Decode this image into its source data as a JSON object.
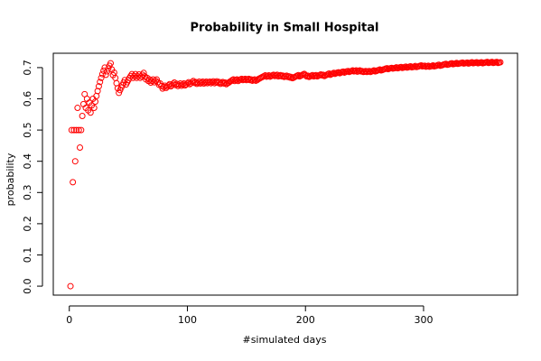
{
  "chart_data": {
    "type": "scatter",
    "title": "Probability in Small Hospital",
    "x_label": "#simulated days",
    "y_label": "probability",
    "xlim": [
      -13.56,
      379.56
    ],
    "ylim": [
      -0.0287,
      0.746
    ],
    "xticks": [
      0,
      100,
      200,
      300
    ],
    "yticks": [
      {
        "value": 0,
        "label": "0.0"
      },
      0.1,
      0.2,
      0.3,
      0.4,
      0.5,
      0.6,
      0.7
    ],
    "series": [
      {
        "color": "#ff0000",
        "x": [
          1,
          2,
          3,
          4,
          5,
          6,
          7,
          8,
          9,
          10,
          11,
          12,
          13,
          14,
          15,
          16,
          17,
          18,
          19,
          20,
          21,
          22,
          23,
          24,
          25,
          26,
          27,
          28,
          29,
          30,
          31,
          32,
          33,
          34,
          35,
          36,
          37,
          38,
          39,
          40,
          41,
          42,
          43,
          44,
          45,
          46,
          47,
          48,
          49,
          50,
          51,
          52,
          53,
          54,
          55,
          56,
          57,
          58,
          59,
          60,
          61,
          62,
          63,
          64,
          65,
          66,
          67,
          68,
          69,
          70,
          71,
          72,
          73,
          74,
          75,
          76,
          77,
          78,
          79,
          80,
          81,
          82,
          83,
          84,
          85,
          86,
          87,
          88,
          89,
          90,
          91,
          92,
          93,
          94,
          95,
          96,
          97,
          98,
          99,
          100,
          101,
          102,
          103,
          104,
          105,
          106,
          107,
          108,
          109,
          110,
          111,
          112,
          113,
          114,
          115,
          116,
          117,
          118,
          119,
          120,
          121,
          122,
          123,
          124,
          125,
          126,
          127,
          128,
          129,
          130,
          131,
          132,
          133,
          134,
          135,
          136,
          137,
          138,
          139,
          140,
          141,
          142,
          143,
          144,
          145,
          146,
          147,
          148,
          149,
          150,
          151,
          152,
          153,
          154,
          155,
          156,
          157,
          158,
          159,
          160,
          161,
          162,
          163,
          164,
          165,
          166,
          167,
          168,
          169,
          170,
          171,
          172,
          173,
          174,
          175,
          176,
          177,
          178,
          179,
          180,
          181,
          182,
          183,
          184,
          185,
          186,
          187,
          188,
          189,
          190,
          191,
          192,
          193,
          194,
          195,
          196,
          197,
          198,
          199,
          200,
          201,
          202,
          203,
          204,
          205,
          206,
          207,
          208,
          209,
          210,
          211,
          212,
          213,
          214,
          215,
          216,
          217,
          218,
          219,
          220,
          221,
          222,
          223,
          224,
          225,
          226,
          227,
          228,
          229,
          230,
          231,
          232,
          233,
          234,
          235,
          236,
          237,
          238,
          239,
          240,
          241,
          242,
          243,
          244,
          245,
          246,
          247,
          248,
          249,
          250,
          251,
          252,
          253,
          254,
          255,
          256,
          257,
          258,
          259,
          260,
          261,
          262,
          263,
          264,
          265,
          266,
          267,
          268,
          269,
          270,
          271,
          272,
          273,
          274,
          275,
          276,
          277,
          278,
          279,
          280,
          281,
          282,
          283,
          284,
          285,
          286,
          287,
          288,
          289,
          290,
          291,
          292,
          293,
          294,
          295,
          296,
          297,
          298,
          299,
          300,
          301,
          302,
          303,
          304,
          305,
          306,
          307,
          308,
          309,
          310,
          311,
          312,
          313,
          314,
          315,
          316,
          317,
          318,
          319,
          320,
          321,
          322,
          323,
          324,
          325,
          326,
          327,
          328,
          329,
          330,
          331,
          332,
          333,
          334,
          335,
          336,
          337,
          338,
          339,
          340,
          341,
          342,
          343,
          344,
          345,
          346,
          347,
          348,
          349,
          350,
          351,
          352,
          353,
          354,
          355,
          356,
          357,
          358,
          359,
          360,
          361,
          362,
          363,
          364,
          365
        ],
        "values": [
          0,
          0.5,
          0.333,
          0.5,
          0.4,
          0.5,
          0.571,
          0.5,
          0.444,
          0.5,
          0.545,
          0.583,
          0.615,
          0.571,
          0.6,
          0.563,
          0.588,
          0.556,
          0.579,
          0.6,
          0.571,
          0.591,
          0.609,
          0.625,
          0.64,
          0.654,
          0.667,
          0.679,
          0.69,
          0.7,
          0.677,
          0.688,
          0.697,
          0.706,
          0.714,
          0.694,
          0.676,
          0.684,
          0.667,
          0.65,
          0.634,
          0.619,
          0.628,
          0.636,
          0.644,
          0.652,
          0.66,
          0.646,
          0.653,
          0.66,
          0.667,
          0.673,
          0.679,
          0.667,
          0.673,
          0.679,
          0.667,
          0.672,
          0.678,
          0.667,
          0.672,
          0.677,
          0.683,
          0.672,
          0.662,
          0.667,
          0.657,
          0.662,
          0.652,
          0.657,
          0.662,
          0.653,
          0.658,
          0.662,
          0.653,
          0.645,
          0.649,
          0.641,
          0.633,
          0.638,
          0.642,
          0.635,
          0.639,
          0.643,
          0.647,
          0.64,
          0.644,
          0.648,
          0.652,
          0.644,
          0.648,
          0.641,
          0.645,
          0.649,
          0.642,
          0.646,
          0.649,
          0.643,
          0.646,
          0.65,
          0.653,
          0.647,
          0.65,
          0.654,
          0.657,
          0.651,
          0.654,
          0.648,
          0.651,
          0.655,
          0.649,
          0.652,
          0.655,
          0.649,
          0.652,
          0.655,
          0.65,
          0.653,
          0.655,
          0.65,
          0.653,
          0.656,
          0.65,
          0.653,
          0.656,
          0.651,
          0.654,
          0.648,
          0.651,
          0.654,
          0.649,
          0.652,
          0.647,
          0.65,
          0.652,
          0.655,
          0.657,
          0.66,
          0.662,
          0.657,
          0.66,
          0.662,
          0.657,
          0.66,
          0.662,
          0.664,
          0.66,
          0.662,
          0.664,
          0.66,
          0.662,
          0.664,
          0.66,
          0.662,
          0.658,
          0.66,
          0.662,
          0.658,
          0.66,
          0.663,
          0.665,
          0.667,
          0.669,
          0.671,
          0.673,
          0.675,
          0.671,
          0.673,
          0.675,
          0.671,
          0.673,
          0.675,
          0.677,
          0.673,
          0.675,
          0.677,
          0.672,
          0.674,
          0.676,
          0.672,
          0.674,
          0.67,
          0.672,
          0.674,
          0.67,
          0.672,
          0.668,
          0.67,
          0.666,
          0.668,
          0.67,
          0.672,
          0.674,
          0.676,
          0.672,
          0.674,
          0.676,
          0.678,
          0.68,
          0.676,
          0.672,
          0.674,
          0.67,
          0.672,
          0.674,
          0.676,
          0.672,
          0.674,
          0.676,
          0.672,
          0.674,
          0.676,
          0.678,
          0.675,
          0.677,
          0.673,
          0.675,
          0.677,
          0.679,
          0.681,
          0.677,
          0.679,
          0.681,
          0.683,
          0.68,
          0.682,
          0.684,
          0.685,
          0.682,
          0.684,
          0.686,
          0.687,
          0.684,
          0.686,
          0.688,
          0.689,
          0.686,
          0.688,
          0.689,
          0.691,
          0.688,
          0.689,
          0.691,
          0.687,
          0.689,
          0.691,
          0.688,
          0.689,
          0.686,
          0.687,
          0.689,
          0.686,
          0.688,
          0.689,
          0.686,
          0.688,
          0.689,
          0.691,
          0.688,
          0.689,
          0.691,
          0.692,
          0.694,
          0.691,
          0.692,
          0.694,
          0.695,
          0.697,
          0.698,
          0.695,
          0.697,
          0.698,
          0.699,
          0.697,
          0.698,
          0.699,
          0.701,
          0.698,
          0.699,
          0.701,
          0.702,
          0.699,
          0.7,
          0.702,
          0.703,
          0.7,
          0.701,
          0.703,
          0.704,
          0.701,
          0.702,
          0.703,
          0.705,
          0.702,
          0.703,
          0.704,
          0.706,
          0.707,
          0.704,
          0.705,
          0.706,
          0.703,
          0.704,
          0.706,
          0.703,
          0.704,
          0.705,
          0.707,
          0.704,
          0.705,
          0.706,
          0.708,
          0.709,
          0.706,
          0.707,
          0.708,
          0.71,
          0.711,
          0.712,
          0.709,
          0.71,
          0.711,
          0.713,
          0.714,
          0.711,
          0.712,
          0.713,
          0.715,
          0.712,
          0.713,
          0.714,
          0.715,
          0.716,
          0.713,
          0.714,
          0.715,
          0.716,
          0.713,
          0.714,
          0.716,
          0.717,
          0.714,
          0.715,
          0.716,
          0.717,
          0.714,
          0.715,
          0.716,
          0.717,
          0.714,
          0.715,
          0.716,
          0.717,
          0.718,
          0.715,
          0.716,
          0.717,
          0.718,
          0.715,
          0.716,
          0.717,
          0.718,
          0.715,
          0.716,
          0.717
        ]
      }
    ]
  }
}
